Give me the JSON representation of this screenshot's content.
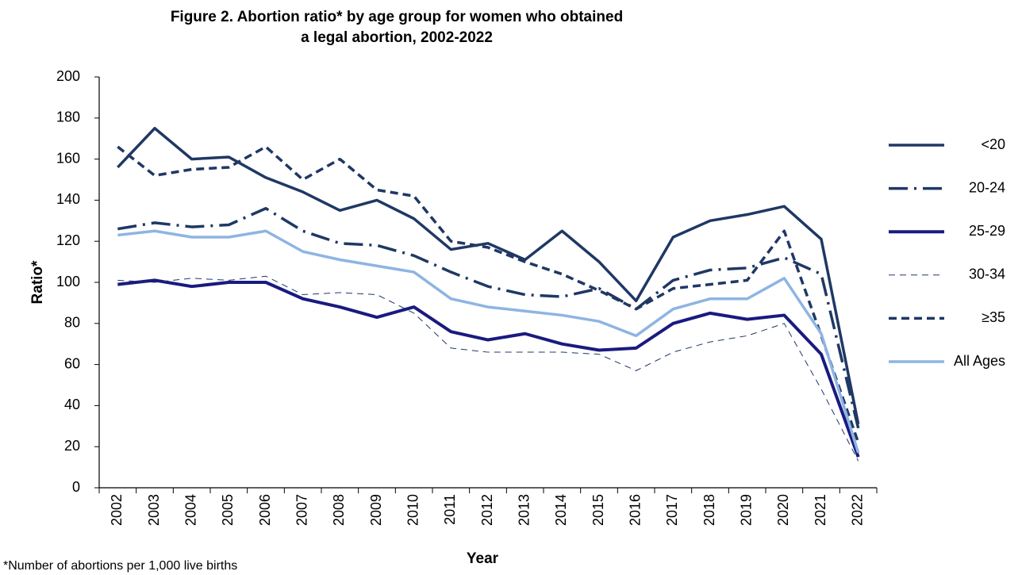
{
  "chart_data": {
    "type": "line",
    "title": [
      "Figure 2. Abortion ratio* by age group for women who obtained",
      "a legal abortion, 2002-2022"
    ],
    "x_label": "Year",
    "y_label": "Ratio*",
    "footnote": "*Number of abortions per 1,000 live births",
    "categories": [
      "2002",
      "2003",
      "2004",
      "2005",
      "2006",
      "2007",
      "2008",
      "2009",
      "2010",
      "2011",
      "2012",
      "2013",
      "2014",
      "2015",
      "2016",
      "2017",
      "2018",
      "2019",
      "2020",
      "2021",
      "2022"
    ],
    "ylim": [
      0,
      200
    ],
    "yticks": [
      0,
      20,
      40,
      60,
      80,
      100,
      120,
      140,
      160,
      180,
      200
    ],
    "grid": false,
    "legend": "right",
    "series": [
      {
        "name": "<20",
        "color": "#1f3864",
        "values": [
          156,
          175,
          160,
          161,
          151,
          144,
          135,
          140,
          131,
          116,
          119,
          111,
          125,
          110,
          91,
          122,
          130,
          133,
          137,
          121,
          31
        ]
      },
      {
        "name": "20-24",
        "color": "#1f3864",
        "values": [
          126,
          129,
          127,
          128,
          136,
          125,
          119,
          118,
          113,
          105,
          98,
          94,
          93,
          97,
          87,
          101,
          106,
          107,
          112,
          104,
          29
        ]
      },
      {
        "name": "25-29",
        "color": "#1a1a80",
        "values": [
          99,
          101,
          98,
          100,
          100,
          92,
          88,
          83,
          88,
          76,
          72,
          75,
          70,
          67,
          68,
          80,
          85,
          82,
          84,
          65,
          15
        ]
      },
      {
        "name": "30-34",
        "color": "#1f3864",
        "values": [
          101,
          100,
          102,
          101,
          103,
          94,
          95,
          94,
          85,
          68,
          66,
          66,
          66,
          65,
          57,
          66,
          71,
          74,
          80,
          48,
          13
        ]
      },
      {
        "name": "≥35",
        "color": "#1f3864",
        "values": [
          166,
          152,
          155,
          156,
          166,
          150,
          160,
          145,
          142,
          120,
          117,
          110,
          104,
          96,
          87,
          97,
          99,
          101,
          125,
          74,
          22
        ]
      },
      {
        "name": "All Ages",
        "color": "#8eb4e3",
        "values": [
          123,
          125,
          122,
          122,
          125,
          115,
          111,
          108,
          105,
          92,
          88,
          86,
          84,
          81,
          74,
          87,
          92,
          92,
          102,
          75,
          17
        ]
      }
    ]
  }
}
